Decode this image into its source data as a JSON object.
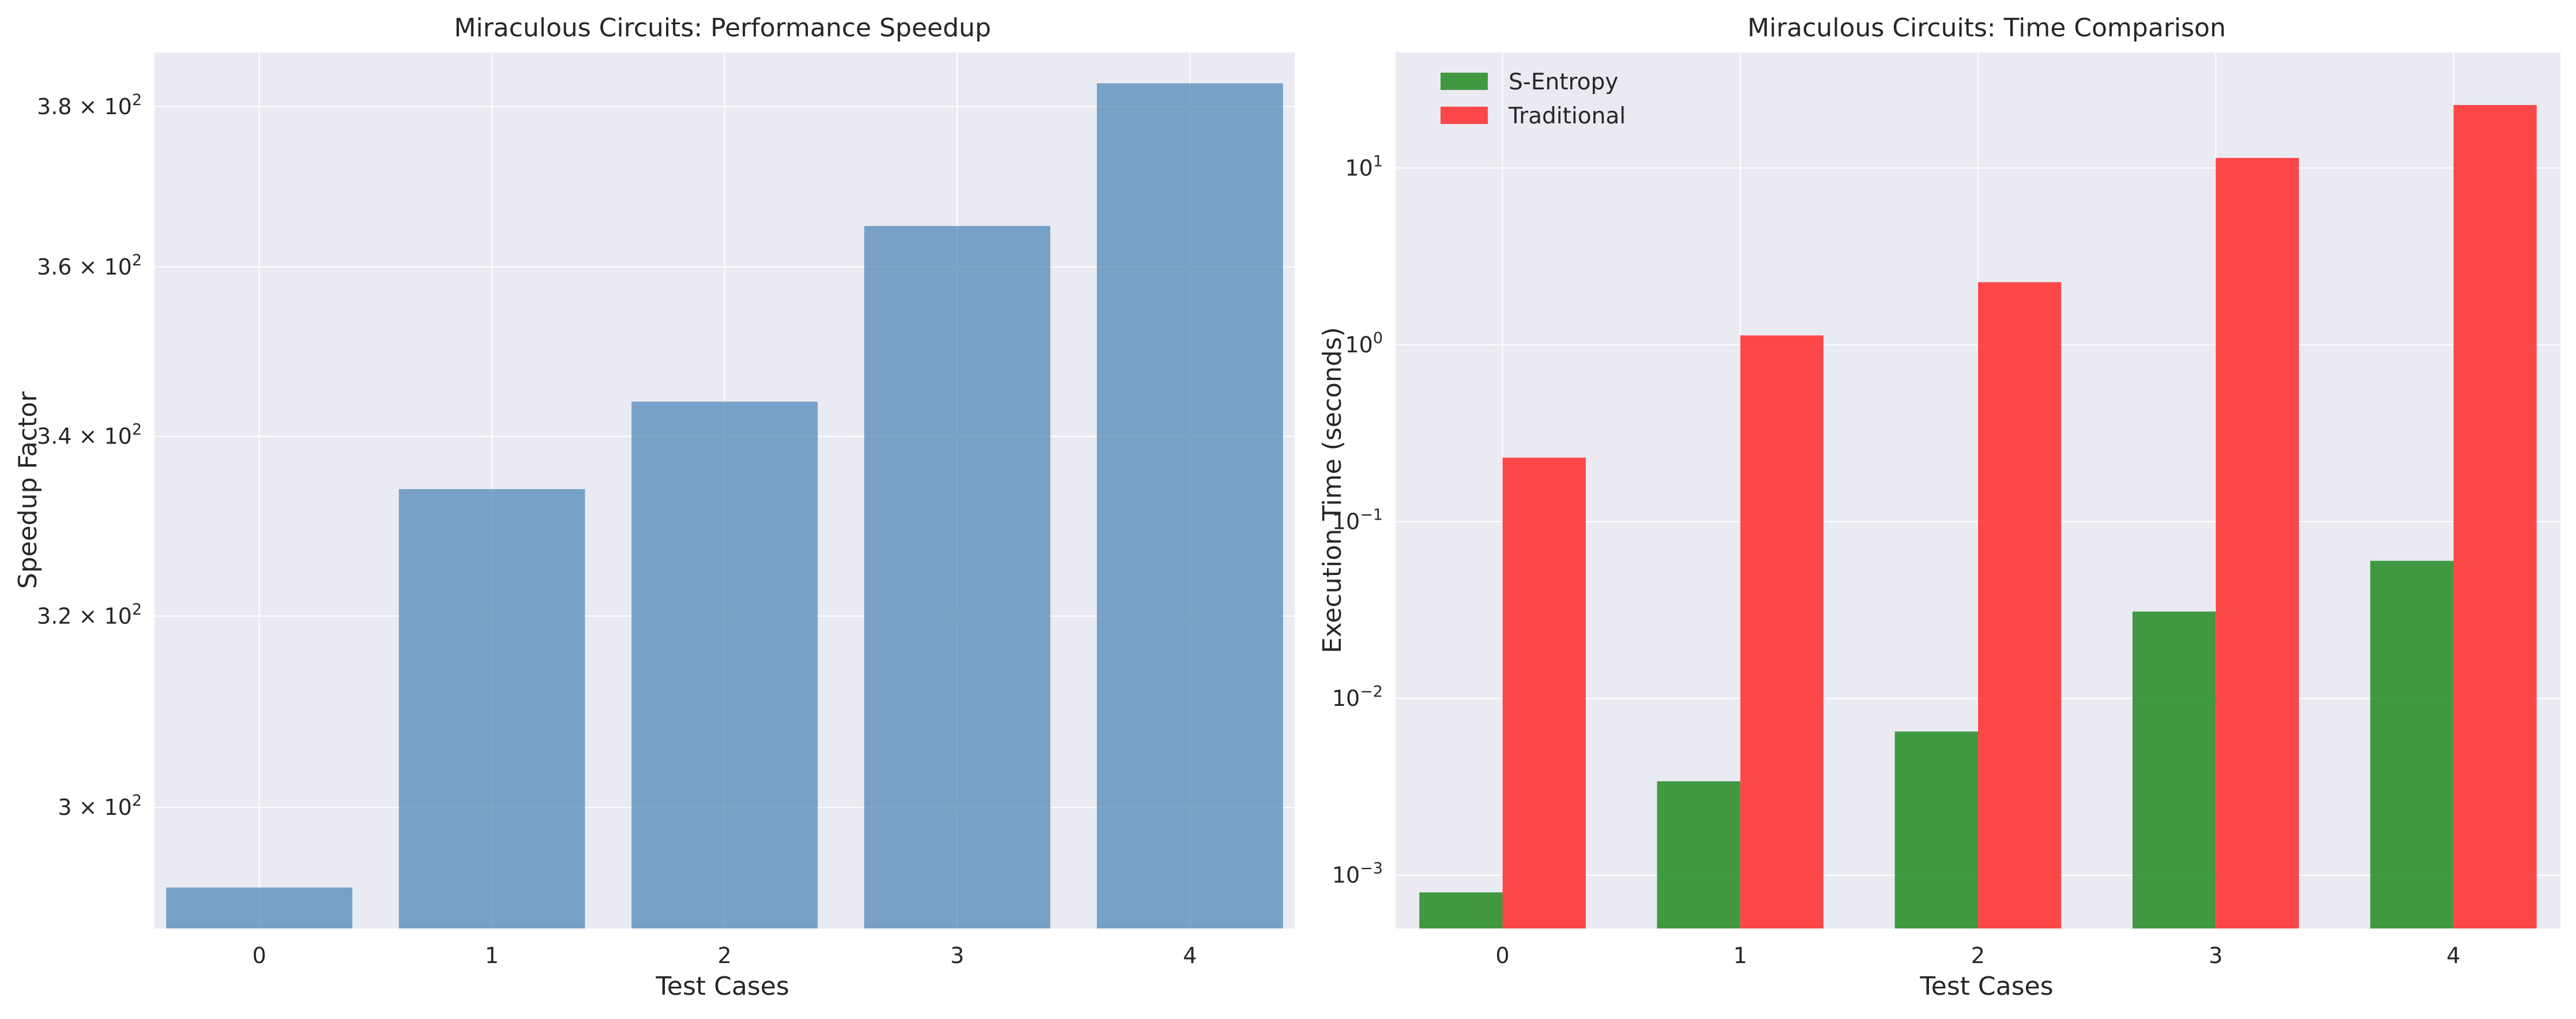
{
  "chart_data": [
    {
      "type": "bar",
      "title": "Miraculous Circuits: Performance Speedup",
      "xlabel": "Test Cases",
      "ylabel": "Speedup Factor",
      "y_scale": "log",
      "categories": [
        "0",
        "1",
        "2",
        "3",
        "4"
      ],
      "values": [
        292,
        334,
        344,
        365,
        383
      ],
      "ylim": [
        288,
        387
      ],
      "y_ticks": [
        {
          "base": "3",
          "exp": "2",
          "value": 300
        },
        {
          "base": "3.2",
          "exp": "2",
          "value": 320
        },
        {
          "base": "3.4",
          "exp": "2",
          "value": 340
        },
        {
          "base": "3.6",
          "exp": "2",
          "value": 360
        },
        {
          "base": "3.8",
          "exp": "2",
          "value": 380
        }
      ],
      "colors": {
        "bar": "#4682b4"
      },
      "grid": true
    },
    {
      "type": "bar",
      "title": "Miraculous Circuits: Time Comparison",
      "xlabel": "Test Cases",
      "ylabel": "Execution Time (seconds)",
      "y_scale": "log",
      "categories": [
        "0",
        "1",
        "2",
        "3",
        "4"
      ],
      "series": [
        {
          "name": "S-Entropy",
          "color": "#228b22",
          "values": [
            0.0008,
            0.0034,
            0.0065,
            0.031,
            0.06
          ]
        },
        {
          "name": "Traditional",
          "color": "#ff2a2a",
          "values": [
            0.23,
            1.13,
            2.26,
            11.4,
            22.7
          ]
        }
      ],
      "ylim": [
        0.0005,
        45
      ],
      "y_ticks": [
        {
          "base": "10",
          "exp": "−3",
          "value": 0.001
        },
        {
          "base": "10",
          "exp": "−2",
          "value": 0.01
        },
        {
          "base": "10",
          "exp": "−1",
          "value": 0.1
        },
        {
          "base": "10",
          "exp": "0",
          "value": 1
        },
        {
          "base": "10",
          "exp": "1",
          "value": 10
        }
      ],
      "legend_position": "top-left",
      "grid": true
    }
  ]
}
